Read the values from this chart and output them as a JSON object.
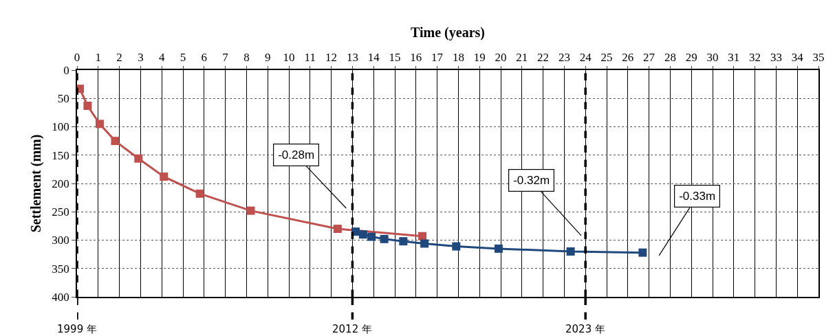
{
  "chart_data": {
    "type": "line",
    "xlabel": "Time (years)",
    "ylabel": "Settlement (mm)",
    "xlim": [
      0,
      35
    ],
    "xticks": [
      0,
      1,
      2,
      3,
      4,
      5,
      6,
      7,
      8,
      9,
      10,
      11,
      12,
      13,
      14,
      15,
      16,
      17,
      18,
      19,
      20,
      21,
      22,
      23,
      24,
      25,
      26,
      27,
      28,
      29,
      30,
      31,
      32,
      33,
      34,
      35
    ],
    "ylim": [
      400,
      0
    ],
    "yticks": [
      0,
      50,
      100,
      150,
      200,
      250,
      300,
      350,
      400
    ],
    "grid": true,
    "marker": "square",
    "line_style": "solid",
    "series": [
      {
        "color": "#c0504d",
        "x": [
          0.13,
          0.5,
          1.07,
          1.8,
          2.9,
          4.1,
          5.8,
          8.2,
          12.3,
          16.3
        ],
        "values": [
          33,
          63,
          95,
          125,
          156,
          188,
          218,
          248,
          280,
          293
        ]
      },
      {
        "color": "#1f497d",
        "x": [
          13.15,
          13.5,
          13.9,
          14.5,
          15.4,
          16.4,
          17.9,
          19.9,
          23.3,
          26.7
        ],
        "values": [
          285,
          290,
          294,
          298,
          302,
          306,
          311,
          315,
          320,
          322
        ]
      }
    ],
    "annotations": [
      "-0.28m",
      "-0.32m",
      "-0.33m"
    ],
    "ref_lines": [
      {
        "axis": "x",
        "value": 0,
        "label": "1999 年",
        "color": "#000000",
        "line_style": "dashed"
      },
      {
        "axis": "x",
        "value": 13,
        "label": "2012 年",
        "color": "#000000",
        "line_style": "dashed"
      },
      {
        "axis": "x",
        "value": 24,
        "label": "2023 年",
        "color": "#000000",
        "line_style": "dashed"
      }
    ]
  }
}
